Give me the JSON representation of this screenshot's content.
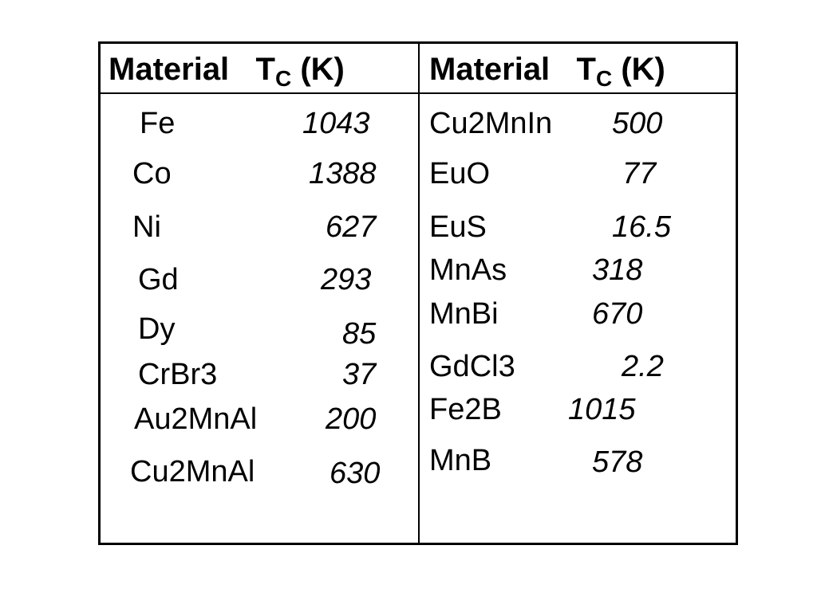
{
  "table": {
    "header_left": {
      "material_label": "Material",
      "tc_prefix": "T",
      "tc_sub": "C",
      "tc_unit": "(K)"
    },
    "header_right": {
      "material_label": "Material",
      "tc_prefix": "T",
      "tc_sub": "C",
      "tc_unit": "(K)"
    },
    "left_rows": [
      {
        "material": "Fe",
        "tc": "1043"
      },
      {
        "material": "Co",
        "tc": "1388"
      },
      {
        "material": "Ni",
        "tc": "627"
      },
      {
        "material": "Gd",
        "tc": "293"
      },
      {
        "material": "Dy",
        "tc": "85"
      },
      {
        "material": "CrBr3",
        "tc": "37"
      },
      {
        "material": "Au2MnAl",
        "tc": "200"
      },
      {
        "material": "Cu2MnAl",
        "tc": "630"
      }
    ],
    "right_rows": [
      {
        "material": "Cu2MnIn",
        "tc": "500"
      },
      {
        "material": "EuO",
        "tc": "77"
      },
      {
        "material": "EuS",
        "tc": "16.5"
      },
      {
        "material": "MnAs",
        "tc": "318"
      },
      {
        "material": "MnBi",
        "tc": "670"
      },
      {
        "material": "GdCl3",
        "tc": "2.2"
      },
      {
        "material": "Fe2B",
        "tc": "1015"
      },
      {
        "material": "MnB",
        "tc": "578"
      }
    ]
  }
}
